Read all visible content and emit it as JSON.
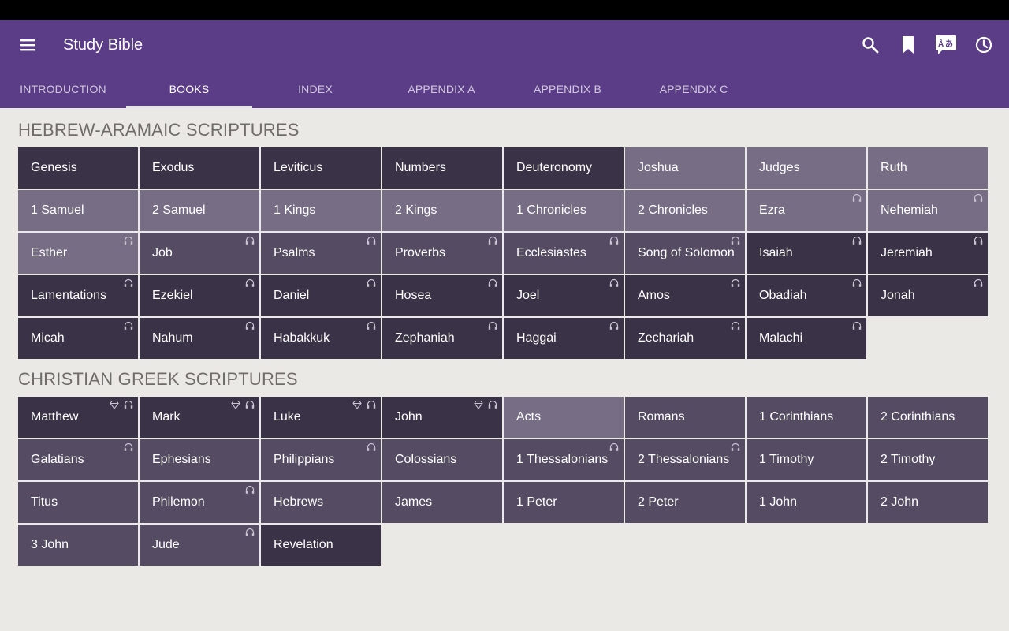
{
  "app": {
    "title": "Study Bible"
  },
  "header": {
    "icons": [
      "menu-icon",
      "search-icon",
      "bookmark-icon",
      "translate-icon",
      "history-icon"
    ]
  },
  "tabs": [
    {
      "label": "INTRODUCTION",
      "active": false
    },
    {
      "label": "BOOKS",
      "active": true
    },
    {
      "label": "INDEX",
      "active": false
    },
    {
      "label": "APPENDIX A",
      "active": false
    },
    {
      "label": "APPENDIX B",
      "active": false
    },
    {
      "label": "APPENDIX C",
      "active": false
    }
  ],
  "colors": {
    "appbar": "#5b3c87",
    "background": "#ebe9e6",
    "tile_dark": "#3a3246",
    "tile_mid": "#554b63",
    "tile_light": "#776d85"
  },
  "sections": [
    {
      "title": "HEBREW-ARAMAIC SCRIPTURES",
      "books": [
        {
          "name": "Genesis",
          "shade": "dark",
          "audio": false,
          "video": false
        },
        {
          "name": "Exodus",
          "shade": "dark",
          "audio": false,
          "video": false
        },
        {
          "name": "Leviticus",
          "shade": "dark",
          "audio": false,
          "video": false
        },
        {
          "name": "Numbers",
          "shade": "dark",
          "audio": false,
          "video": false
        },
        {
          "name": "Deuteronomy",
          "shade": "dark",
          "audio": false,
          "video": false
        },
        {
          "name": "Joshua",
          "shade": "light",
          "audio": false,
          "video": false
        },
        {
          "name": "Judges",
          "shade": "light",
          "audio": false,
          "video": false
        },
        {
          "name": "Ruth",
          "shade": "light",
          "audio": false,
          "video": false
        },
        {
          "name": "1 Samuel",
          "shade": "light",
          "audio": false,
          "video": false
        },
        {
          "name": "2 Samuel",
          "shade": "light",
          "audio": false,
          "video": false
        },
        {
          "name": "1 Kings",
          "shade": "light",
          "audio": false,
          "video": false
        },
        {
          "name": "2 Kings",
          "shade": "light",
          "audio": false,
          "video": false
        },
        {
          "name": "1 Chronicles",
          "shade": "light",
          "audio": false,
          "video": false
        },
        {
          "name": "2 Chronicles",
          "shade": "light",
          "audio": false,
          "video": false
        },
        {
          "name": "Ezra",
          "shade": "light",
          "audio": true,
          "video": false
        },
        {
          "name": "Nehemiah",
          "shade": "light",
          "audio": true,
          "video": false
        },
        {
          "name": "Esther",
          "shade": "light",
          "audio": true,
          "video": false
        },
        {
          "name": "Job",
          "shade": "mid",
          "audio": true,
          "video": false
        },
        {
          "name": "Psalms",
          "shade": "mid",
          "audio": true,
          "video": false
        },
        {
          "name": "Proverbs",
          "shade": "mid",
          "audio": true,
          "video": false
        },
        {
          "name": "Ecclesiastes",
          "shade": "mid",
          "audio": true,
          "video": false
        },
        {
          "name": "Song of Solomon",
          "shade": "mid",
          "audio": true,
          "video": false
        },
        {
          "name": "Isaiah",
          "shade": "dark",
          "audio": true,
          "video": false
        },
        {
          "name": "Jeremiah",
          "shade": "dark",
          "audio": true,
          "video": false
        },
        {
          "name": "Lamentations",
          "shade": "dark",
          "audio": true,
          "video": false
        },
        {
          "name": "Ezekiel",
          "shade": "dark",
          "audio": true,
          "video": false
        },
        {
          "name": "Daniel",
          "shade": "dark",
          "audio": true,
          "video": false
        },
        {
          "name": "Hosea",
          "shade": "dark",
          "audio": true,
          "video": false
        },
        {
          "name": "Joel",
          "shade": "dark",
          "audio": true,
          "video": false
        },
        {
          "name": "Amos",
          "shade": "dark",
          "audio": true,
          "video": false
        },
        {
          "name": "Obadiah",
          "shade": "dark",
          "audio": true,
          "video": false
        },
        {
          "name": "Jonah",
          "shade": "dark",
          "audio": true,
          "video": false
        },
        {
          "name": "Micah",
          "shade": "dark",
          "audio": true,
          "video": false
        },
        {
          "name": "Nahum",
          "shade": "dark",
          "audio": true,
          "video": false
        },
        {
          "name": "Habakkuk",
          "shade": "dark",
          "audio": true,
          "video": false
        },
        {
          "name": "Zephaniah",
          "shade": "dark",
          "audio": true,
          "video": false
        },
        {
          "name": "Haggai",
          "shade": "dark",
          "audio": true,
          "video": false
        },
        {
          "name": "Zechariah",
          "shade": "dark",
          "audio": true,
          "video": false
        },
        {
          "name": "Malachi",
          "shade": "dark",
          "audio": true,
          "video": false
        }
      ]
    },
    {
      "title": "CHRISTIAN GREEK SCRIPTURES",
      "books": [
        {
          "name": "Matthew",
          "shade": "dark",
          "audio": true,
          "video": true
        },
        {
          "name": "Mark",
          "shade": "dark",
          "audio": true,
          "video": true
        },
        {
          "name": "Luke",
          "shade": "dark",
          "audio": true,
          "video": true
        },
        {
          "name": "John",
          "shade": "dark",
          "audio": true,
          "video": true
        },
        {
          "name": "Acts",
          "shade": "light",
          "audio": false,
          "video": false
        },
        {
          "name": "Romans",
          "shade": "mid",
          "audio": false,
          "video": false
        },
        {
          "name": "1 Corinthians",
          "shade": "mid",
          "audio": false,
          "video": false
        },
        {
          "name": "2 Corinthians",
          "shade": "mid",
          "audio": false,
          "video": false
        },
        {
          "name": "Galatians",
          "shade": "mid",
          "audio": true,
          "video": false
        },
        {
          "name": "Ephesians",
          "shade": "mid",
          "audio": false,
          "video": false
        },
        {
          "name": "Philippians",
          "shade": "mid",
          "audio": true,
          "video": false
        },
        {
          "name": "Colossians",
          "shade": "mid",
          "audio": false,
          "video": false
        },
        {
          "name": "1 Thessalonians",
          "shade": "mid",
          "audio": true,
          "video": false
        },
        {
          "name": "2 Thessalonians",
          "shade": "mid",
          "audio": true,
          "video": false
        },
        {
          "name": "1 Timothy",
          "shade": "mid",
          "audio": false,
          "video": false
        },
        {
          "name": "2 Timothy",
          "shade": "mid",
          "audio": false,
          "video": false
        },
        {
          "name": "Titus",
          "shade": "mid",
          "audio": false,
          "video": false
        },
        {
          "name": "Philemon",
          "shade": "mid",
          "audio": true,
          "video": false
        },
        {
          "name": "Hebrews",
          "shade": "mid",
          "audio": false,
          "video": false
        },
        {
          "name": "James",
          "shade": "mid",
          "audio": false,
          "video": false
        },
        {
          "name": "1 Peter",
          "shade": "mid",
          "audio": false,
          "video": false
        },
        {
          "name": "2 Peter",
          "shade": "mid",
          "audio": false,
          "video": false
        },
        {
          "name": "1 John",
          "shade": "mid",
          "audio": false,
          "video": false
        },
        {
          "name": "2 John",
          "shade": "mid",
          "audio": false,
          "video": false
        },
        {
          "name": "3 John",
          "shade": "mid",
          "audio": false,
          "video": false
        },
        {
          "name": "Jude",
          "shade": "mid",
          "audio": true,
          "video": false
        },
        {
          "name": "Revelation",
          "shade": "dark",
          "audio": false,
          "video": false
        }
      ]
    }
  ]
}
